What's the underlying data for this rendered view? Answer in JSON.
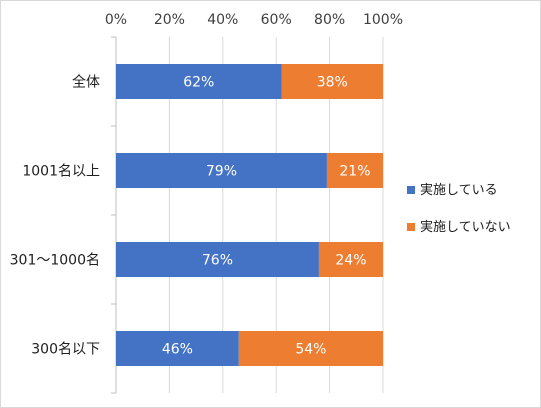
{
  "chart_data": {
    "type": "bar",
    "orientation": "horizontal",
    "stacked": true,
    "categories": [
      "全体",
      "1001名以上",
      "301～1000名",
      "300名以下"
    ],
    "series": [
      {
        "name": "実施している",
        "values": [
          62,
          79,
          76,
          46
        ],
        "color": "#4472C4"
      },
      {
        "name": "実施していない",
        "values": [
          38,
          21,
          24,
          54
        ],
        "color": "#ED7D31"
      }
    ],
    "value_labels": [
      [
        "62%",
        "79%",
        "76%",
        "46%"
      ],
      [
        "38%",
        "21%",
        "24%",
        "54%"
      ]
    ],
    "xlim": [
      0,
      100
    ],
    "x_ticks": [
      "0%",
      "20%",
      "40%",
      "60%",
      "80%",
      "100%"
    ],
    "x_axis_position": "top",
    "grid": true,
    "legend_position": "right"
  }
}
